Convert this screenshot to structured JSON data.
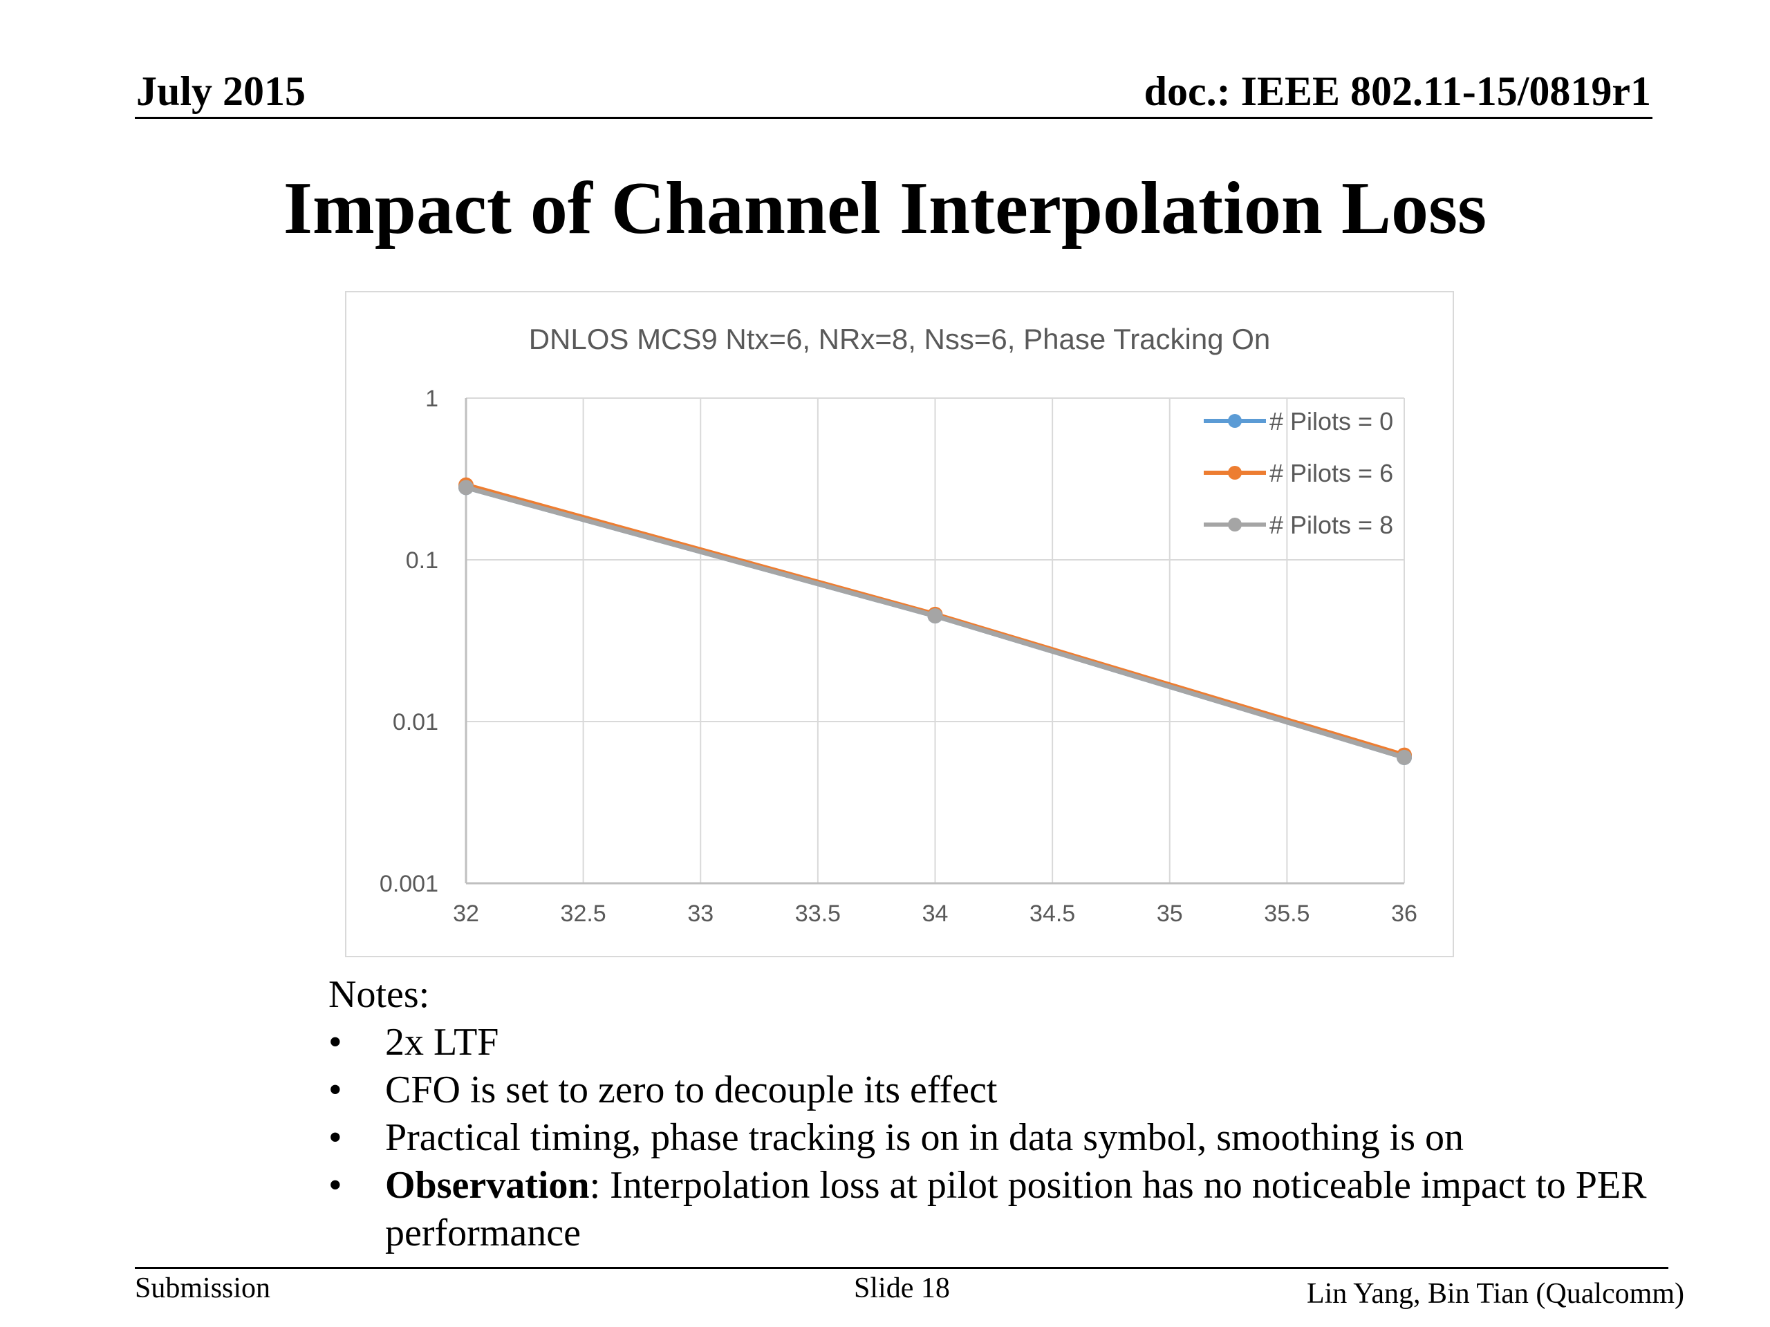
{
  "header": {
    "date": "July 2015",
    "doc_id": "doc.: IEEE 802.11-15/0819r1"
  },
  "slide": {
    "title": "Impact of Channel Interpolation Loss"
  },
  "chart_data": {
    "type": "line",
    "title": "DNLOS MCS9 Ntx=6,  NRx=8, Nss=6, Phase Tracking On",
    "xlabel": "",
    "ylabel": "",
    "x": [
      32,
      34,
      36
    ],
    "x_ticks": [
      "32",
      "32.5",
      "33",
      "33.5",
      "34",
      "34.5",
      "35",
      "35.5",
      "36"
    ],
    "xlim": [
      32,
      36
    ],
    "y_scale": "log",
    "y_ticks": [
      "1",
      "0.1",
      "0.01",
      "0.001"
    ],
    "ylim": [
      0.001,
      1
    ],
    "grid": true,
    "legend_position": "top-right",
    "series": [
      {
        "name": "# Pilots = 0",
        "color": "#5b9bd5",
        "values": [
          0.28,
          0.045,
          0.006
        ]
      },
      {
        "name": "# Pilots = 6",
        "color": "#ed7d31",
        "values": [
          0.29,
          0.046,
          0.0062
        ]
      },
      {
        "name": "# Pilots = 8",
        "color": "#a5a5a5",
        "values": [
          0.28,
          0.045,
          0.006
        ]
      }
    ]
  },
  "notes": {
    "label": "Notes:",
    "bullets": [
      {
        "bold": "",
        "text": "2x LTF"
      },
      {
        "bold": "",
        "text": "CFO is set to zero to decouple its effect"
      },
      {
        "bold": "",
        "text": "Practical timing, phase tracking is on in data symbol, smoothing is on"
      },
      {
        "bold": "Observation",
        "text": ": Interpolation loss at pilot position has no noticeable impact to PER performance"
      }
    ]
  },
  "footer": {
    "left": "Submission",
    "center": "Slide 18",
    "right": "Lin Yang, Bin Tian (Qualcomm)"
  }
}
